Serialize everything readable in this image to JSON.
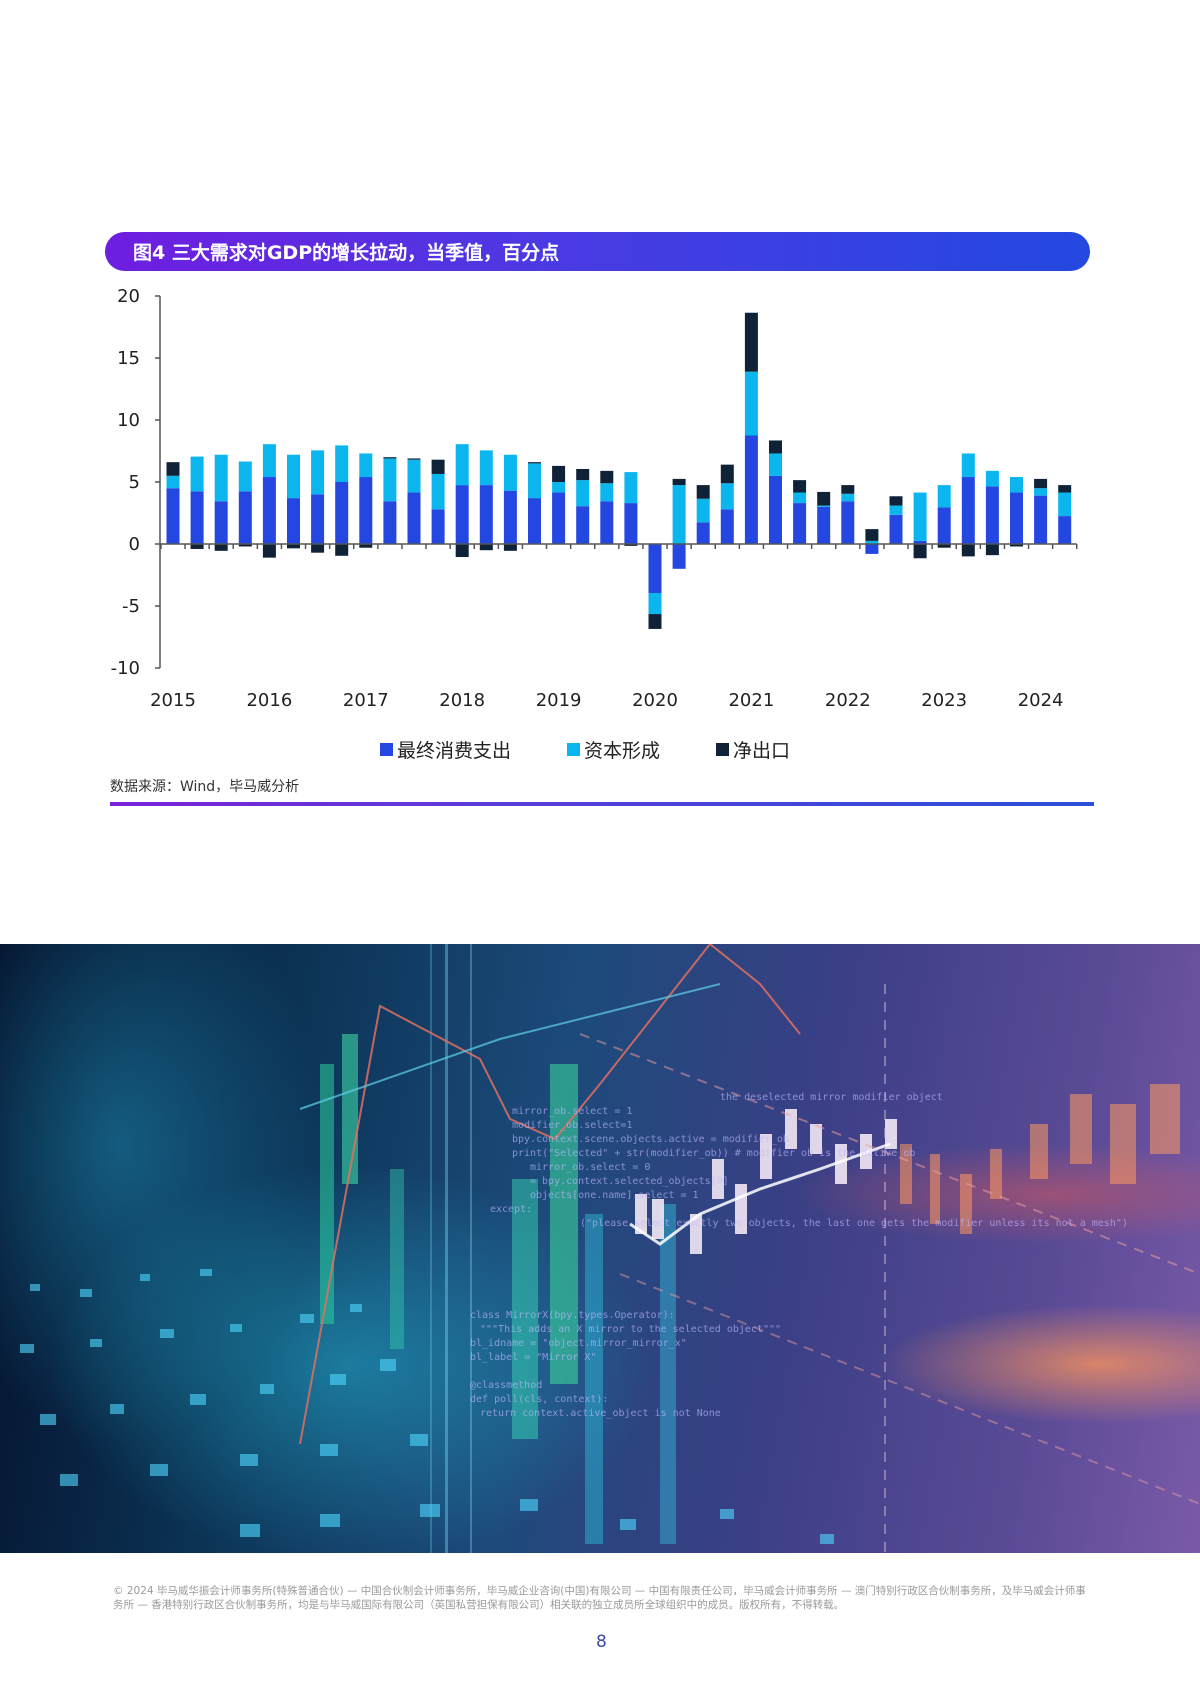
{
  "figure": {
    "title": "图4 三大需求对GDP的增长拉动，当季值，百分点",
    "source": "数据来源：Wind，毕马威分析"
  },
  "legend": [
    {
      "label": "最终消费支出",
      "color": "#2347e0"
    },
    {
      "label": "资本形成",
      "color": "#0bb6ee"
    },
    {
      "label": "净出口",
      "color": "#0f2238"
    }
  ],
  "chart_data": {
    "type": "bar",
    "stacked": true,
    "title": "图4 三大需求对GDP的增长拉动，当季值，百分点",
    "xlabel": "",
    "ylabel": "",
    "ylim": [
      -10,
      20
    ],
    "yticks": [
      20,
      15,
      10,
      5,
      0,
      -5,
      -10
    ],
    "xtick_labels": [
      "2015",
      "2016",
      "2017",
      "2018",
      "2019",
      "2020",
      "2021",
      "2022",
      "2023",
      "2024"
    ],
    "legend_position": "bottom",
    "grid": false,
    "categories": [
      "2015Q1",
      "2015Q2",
      "2015Q3",
      "2015Q4",
      "2016Q1",
      "2016Q2",
      "2016Q3",
      "2016Q4",
      "2017Q1",
      "2017Q2",
      "2017Q3",
      "2017Q4",
      "2018Q1",
      "2018Q2",
      "2018Q3",
      "2018Q4",
      "2019Q1",
      "2019Q2",
      "2019Q3",
      "2019Q4",
      "2020Q1",
      "2020Q2",
      "2020Q3",
      "2020Q4",
      "2021Q1",
      "2021Q2",
      "2021Q3",
      "2021Q4",
      "2022Q1",
      "2022Q2",
      "2022Q3",
      "2022Q4",
      "2023Q1",
      "2023Q2",
      "2023Q3",
      "2023Q4",
      "2024Q1",
      "2024Q2"
    ],
    "series": [
      {
        "name": "最终消费支出",
        "color": "#2347e0",
        "values": [
          4.5,
          4.25,
          3.45,
          4.25,
          5.4,
          3.7,
          4.0,
          5.0,
          5.4,
          3.45,
          4.15,
          2.8,
          4.75,
          4.75,
          4.3,
          3.7,
          4.15,
          3.05,
          3.45,
          3.3,
          -3.95,
          -2.0,
          1.75,
          2.8,
          8.75,
          5.5,
          3.3,
          3.0,
          3.45,
          -0.8,
          2.35,
          0.25,
          2.95,
          5.4,
          4.65,
          4.15,
          3.9,
          2.25
        ]
      },
      {
        "name": "资本形成",
        "color": "#0bb6ee",
        "values": [
          1.0,
          2.8,
          3.75,
          2.4,
          2.65,
          3.5,
          3.55,
          2.95,
          1.9,
          3.45,
          2.65,
          2.85,
          3.3,
          2.8,
          2.9,
          2.8,
          0.85,
          2.1,
          1.45,
          2.5,
          -1.7,
          4.75,
          1.9,
          2.1,
          5.15,
          1.8,
          0.85,
          0.1,
          0.6,
          0.25,
          0.75,
          3.9,
          1.8,
          1.9,
          1.25,
          1.25,
          0.6,
          1.9
        ]
      },
      {
        "name": "净出口",
        "color": "#0f2238",
        "values": [
          1.1,
          -0.4,
          -0.55,
          -0.2,
          -1.1,
          -0.35,
          -0.7,
          -0.95,
          -0.3,
          0.1,
          0.1,
          1.15,
          -1.05,
          -0.5,
          -0.55,
          0.1,
          1.3,
          0.9,
          1.0,
          -0.15,
          -1.2,
          0.5,
          1.1,
          1.5,
          4.75,
          1.05,
          1.0,
          1.1,
          0.7,
          0.95,
          0.75,
          -1.15,
          -0.3,
          -1.0,
          -0.9,
          -0.2,
          0.75,
          0.6
        ]
      }
    ]
  },
  "footer": {
    "copyright": "© 2024 毕马威华振会计师事务所(特殊普通合伙) — 中国合伙制会计师事务所，毕马威企业咨询(中国)有限公司 — 中国有限责任公司，毕马威会计师事务所 — 澳门特别行政区合伙制事务所，及毕马威会计师事务所 — 香港特别行政区合伙制事务所，均是与毕马威国际有限公司（英国私营担保有限公司）相关联的独立成员所全球组织中的成员。版权所有，不得转载。",
    "page_number": "8"
  },
  "hero_image": {
    "description": "abstract-financial-chart-background"
  }
}
